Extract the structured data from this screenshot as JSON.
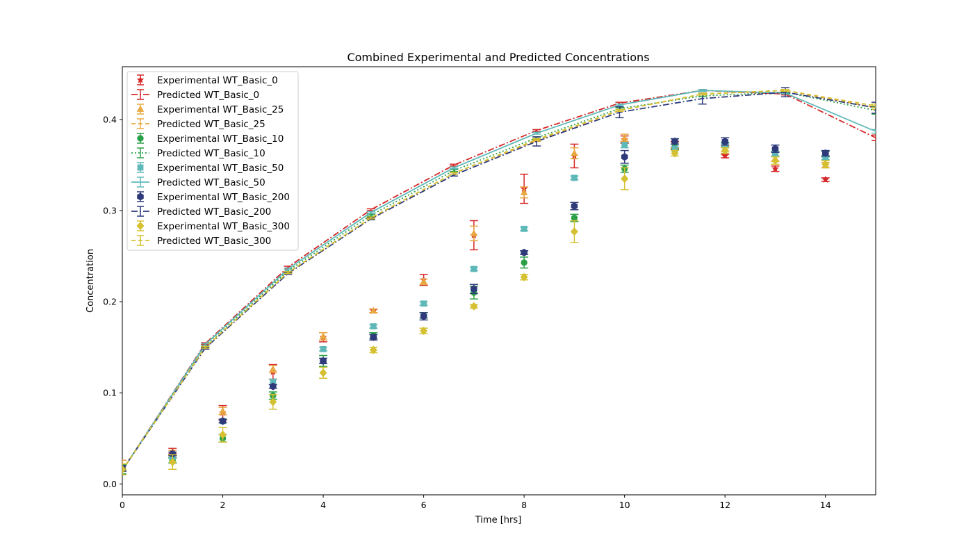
{
  "chart_data": {
    "type": "scatter",
    "title": "Combined Experimental and Predicted Concentrations",
    "xlabel": "Time [hrs]",
    "ylabel": "Concentration",
    "xlim": [
      0,
      15
    ],
    "ylim": [
      -0.012,
      0.458
    ],
    "xticks": [
      0,
      2,
      4,
      6,
      8,
      10,
      12,
      14
    ],
    "yticks": [
      0.0,
      0.1,
      0.2,
      0.3,
      0.4
    ],
    "xtick_labels": [
      "0",
      "2",
      "4",
      "6",
      "8",
      "10",
      "12",
      "14"
    ],
    "ytick_labels": [
      "0.0",
      "0.1",
      "0.2",
      "0.3",
      "0.4"
    ],
    "legend_position": "top-left",
    "series": [
      {
        "name": "Experimental WT_Basic_0",
        "kind": "experimental",
        "color": "#d62728",
        "marker": "star",
        "x": [
          0,
          1,
          2,
          3,
          4,
          5,
          6,
          7,
          8,
          9,
          10,
          11,
          12,
          13,
          14
        ],
        "y": [
          0.018,
          0.036,
          0.078,
          0.123,
          0.161,
          0.19,
          0.224,
          0.273,
          0.324,
          0.36,
          0.378,
          0.372,
          0.36,
          0.346,
          0.334
        ],
        "err": [
          0.008,
          0.003,
          0.008,
          0.008,
          0.005,
          0.002,
          0.006,
          0.016,
          0.016,
          0.013,
          0.004,
          0.004,
          0.002,
          0.003,
          0.002
        ]
      },
      {
        "name": "Predicted WT_Basic_0",
        "kind": "predicted",
        "color": "#d62728",
        "dash": "9,3,2,3",
        "x": [
          0,
          1.65,
          3.3,
          4.95,
          6.6,
          8.25,
          9.9,
          11.55,
          13.2,
          15
        ],
        "y": [
          0.015,
          0.154,
          0.238,
          0.301,
          0.35,
          0.388,
          0.418,
          0.432,
          0.428,
          0.38
        ],
        "err": [
          0.001,
          0.001,
          0.001,
          0.001,
          0.001,
          0.001,
          0.001,
          0.001,
          0.001,
          0.003
        ]
      },
      {
        "name": "Experimental WT_Basic_25",
        "kind": "experimental",
        "color": "#e8a840",
        "marker": "triangle",
        "x": [
          0,
          1,
          2,
          3,
          4,
          5,
          6,
          7,
          8,
          9,
          10,
          11,
          12,
          13,
          14
        ],
        "y": [
          0.02,
          0.034,
          0.08,
          0.126,
          0.162,
          0.19,
          0.222,
          0.275,
          0.32,
          0.363,
          0.38,
          0.372,
          0.368,
          0.357,
          0.35
        ],
        "err": [
          0.006,
          0.003,
          0.004,
          0.004,
          0.004,
          0.002,
          0.003,
          0.008,
          0.006,
          0.006,
          0.004,
          0.003,
          0.003,
          0.003,
          0.003
        ]
      },
      {
        "name": "Predicted WT_Basic_25",
        "kind": "predicted",
        "color": "#e8a840",
        "dash": "6,4",
        "x": [
          0,
          1.65,
          3.3,
          4.95,
          6.6,
          8.25,
          9.9,
          11.55,
          13.2,
          15
        ],
        "y": [
          0.015,
          0.15,
          0.232,
          0.292,
          0.341,
          0.377,
          0.41,
          0.428,
          0.432,
          0.413
        ],
        "err": [
          0.001,
          0.001,
          0.001,
          0.001,
          0.001,
          0.001,
          0.001,
          0.001,
          0.001,
          0.002
        ]
      },
      {
        "name": "Experimental WT_Basic_10",
        "kind": "experimental",
        "color": "#2ca048",
        "marker": "circle",
        "x": [
          0,
          1,
          2,
          3,
          4,
          5,
          6,
          7,
          8,
          9,
          10,
          11,
          12,
          13,
          14
        ],
        "y": [
          0.016,
          0.026,
          0.05,
          0.097,
          0.135,
          0.163,
          0.185,
          0.21,
          0.243,
          0.292,
          0.346,
          0.37,
          0.372,
          0.362,
          0.362
        ],
        "err": [
          0.005,
          0.003,
          0.004,
          0.004,
          0.006,
          0.003,
          0.003,
          0.007,
          0.006,
          0.004,
          0.004,
          0.003,
          0.003,
          0.003,
          0.003
        ]
      },
      {
        "name": "Predicted WT_Basic_10",
        "kind": "predicted",
        "color": "#2ca048",
        "dash": "2,3",
        "x": [
          0,
          1.65,
          3.3,
          4.95,
          6.6,
          8.25,
          9.9,
          11.55,
          13.2,
          15
        ],
        "y": [
          0.015,
          0.151,
          0.234,
          0.295,
          0.344,
          0.38,
          0.412,
          0.426,
          0.43,
          0.41
        ],
        "err": [
          0.001,
          0.001,
          0.001,
          0.001,
          0.001,
          0.001,
          0.001,
          0.001,
          0.001,
          0.004
        ]
      },
      {
        "name": "Experimental WT_Basic_50",
        "kind": "experimental",
        "color": "#5fb8b8",
        "marker": "square",
        "x": [
          0,
          1,
          2,
          3,
          4,
          5,
          6,
          7,
          8,
          9,
          10,
          11,
          12,
          13,
          14
        ],
        "y": [
          0.017,
          0.03,
          0.069,
          0.112,
          0.148,
          0.173,
          0.198,
          0.236,
          0.28,
          0.336,
          0.372,
          0.368,
          0.372,
          0.362,
          0.358
        ],
        "err": [
          0.003,
          0.002,
          0.002,
          0.003,
          0.002,
          0.002,
          0.002,
          0.002,
          0.002,
          0.002,
          0.003,
          0.002,
          0.002,
          0.002,
          0.002
        ]
      },
      {
        "name": "Predicted WT_Basic_50",
        "kind": "predicted",
        "color": "#5fb8b8",
        "dash": "",
        "x": [
          0,
          1.65,
          3.3,
          4.95,
          6.6,
          8.25,
          9.9,
          11.55,
          13.2,
          15
        ],
        "y": [
          0.015,
          0.153,
          0.236,
          0.298,
          0.347,
          0.385,
          0.416,
          0.432,
          0.429,
          0.387
        ],
        "err": [
          0.001,
          0.001,
          0.001,
          0.001,
          0.001,
          0.001,
          0.001,
          0.001,
          0.001,
          0.002
        ]
      },
      {
        "name": "Experimental WT_Basic_200",
        "kind": "experimental",
        "color": "#2e3a7a",
        "marker": "hexagon",
        "x": [
          0,
          1,
          2,
          3,
          4,
          5,
          6,
          7,
          8,
          9,
          10,
          11,
          12,
          13,
          14
        ],
        "y": [
          0.017,
          0.033,
          0.069,
          0.107,
          0.135,
          0.161,
          0.184,
          0.214,
          0.254,
          0.305,
          0.359,
          0.376,
          0.376,
          0.368,
          0.363
        ],
        "err": [
          0.003,
          0.002,
          0.002,
          0.002,
          0.003,
          0.003,
          0.004,
          0.005,
          0.002,
          0.004,
          0.007,
          0.003,
          0.004,
          0.004,
          0.003
        ]
      },
      {
        "name": "Predicted WT_Basic_200",
        "kind": "predicted",
        "color": "#2e3a7a",
        "dash": "9,3,2,3",
        "x": [
          0,
          1.65,
          3.3,
          4.95,
          6.6,
          8.25,
          9.9,
          11.55,
          13.2,
          15
        ],
        "y": [
          0.015,
          0.149,
          0.231,
          0.291,
          0.339,
          0.376,
          0.408,
          0.423,
          0.43,
          0.413
        ],
        "err": [
          0.001,
          0.001,
          0.001,
          0.001,
          0.001,
          0.005,
          0.006,
          0.006,
          0.005,
          0.006
        ]
      },
      {
        "name": "Experimental WT_Basic_300",
        "kind": "experimental",
        "color": "#d4c030",
        "marker": "diamond",
        "x": [
          0,
          1,
          2,
          3,
          4,
          5,
          6,
          7,
          8,
          9,
          10,
          11,
          12,
          13,
          14
        ],
        "y": [
          0.016,
          0.024,
          0.054,
          0.09,
          0.122,
          0.147,
          0.168,
          0.195,
          0.227,
          0.277,
          0.335,
          0.363,
          0.366,
          0.355,
          0.351
        ],
        "err": [
          0.006,
          0.008,
          0.008,
          0.008,
          0.006,
          0.003,
          0.003,
          0.002,
          0.003,
          0.012,
          0.012,
          0.003,
          0.003,
          0.004,
          0.004
        ]
      },
      {
        "name": "Predicted WT_Basic_300",
        "kind": "predicted",
        "color": "#d4c030",
        "dash": "6,4",
        "x": [
          0,
          1.65,
          3.3,
          4.95,
          6.6,
          8.25,
          9.9,
          11.55,
          13.2,
          15
        ],
        "y": [
          0.015,
          0.15,
          0.232,
          0.292,
          0.341,
          0.378,
          0.41,
          0.428,
          0.432,
          0.415
        ],
        "err": [
          0.001,
          0.001,
          0.001,
          0.001,
          0.001,
          0.001,
          0.001,
          0.001,
          0.001,
          0.002
        ]
      }
    ]
  }
}
